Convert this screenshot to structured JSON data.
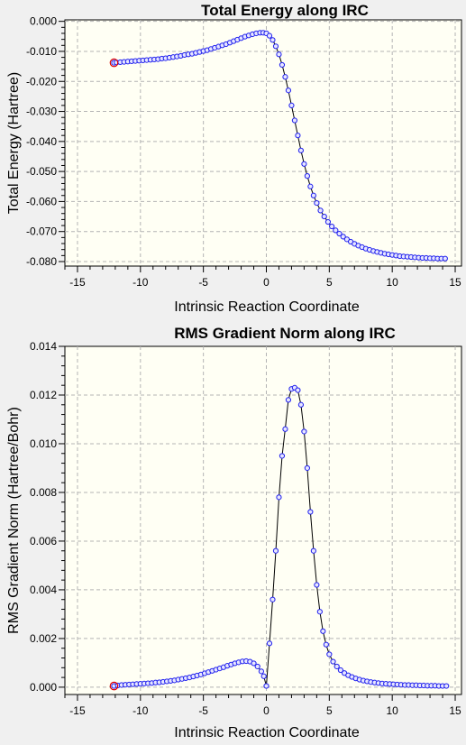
{
  "chart_data": [
    {
      "type": "scatter",
      "title": "Total Energy along IRC",
      "xlabel": "Intrinsic Reaction Coordinate",
      "ylabel": "Total Energy (Hartree)",
      "xlim": [
        -16,
        15.5
      ],
      "ylim": [
        -0.0815,
        0.0005
      ],
      "xticks": [
        -15,
        -10,
        -5,
        0,
        5,
        10,
        15
      ],
      "yticks": [
        0.0,
        -0.01,
        -0.02,
        -0.03,
        -0.04,
        -0.05,
        -0.06,
        -0.07,
        -0.08
      ],
      "xtick_labels": [
        "-15",
        "-10",
        "-5",
        "0",
        "5",
        "10",
        "15"
      ],
      "ytick_labels": [
        "0.000",
        "-0.010",
        "-0.020",
        "-0.030",
        "-0.040",
        "-0.050",
        "-0.060",
        "-0.070",
        "-0.080"
      ],
      "grid": true,
      "highlight_x": -12.1,
      "x": [
        -12.1,
        -11.9,
        -11.6,
        -11.3,
        -11.0,
        -10.7,
        -10.4,
        -10.1,
        -9.8,
        -9.5,
        -9.2,
        -8.9,
        -8.6,
        -8.3,
        -8.0,
        -7.7,
        -7.4,
        -7.1,
        -6.8,
        -6.5,
        -6.2,
        -5.9,
        -5.6,
        -5.3,
        -5.0,
        -4.7,
        -4.4,
        -4.1,
        -3.8,
        -3.5,
        -3.2,
        -2.9,
        -2.6,
        -2.3,
        -2.0,
        -1.7,
        -1.4,
        -1.1,
        -0.8,
        -0.5,
        -0.25,
        0.0,
        0.25,
        0.5,
        0.75,
        1.0,
        1.25,
        1.5,
        1.75,
        2.0,
        2.25,
        2.5,
        2.75,
        3.0,
        3.25,
        3.5,
        3.75,
        4.0,
        4.3,
        4.6,
        4.9,
        5.2,
        5.5,
        5.8,
        6.1,
        6.4,
        6.7,
        7.0,
        7.3,
        7.6,
        7.9,
        8.2,
        8.5,
        8.8,
        9.1,
        9.4,
        9.7,
        10.0,
        10.3,
        10.6,
        10.9,
        11.2,
        11.5,
        11.8,
        12.1,
        12.4,
        12.7,
        13.0,
        13.3,
        13.6,
        13.9,
        14.2
      ],
      "y": [
        -0.0138,
        -0.0137,
        -0.0136,
        -0.0135,
        -0.0134,
        -0.0133,
        -0.0132,
        -0.0131,
        -0.013,
        -0.0129,
        -0.0128,
        -0.0127,
        -0.0126,
        -0.0124,
        -0.0123,
        -0.0121,
        -0.0119,
        -0.0117,
        -0.0115,
        -0.0112,
        -0.011,
        -0.0108,
        -0.0105,
        -0.0102,
        -0.0099,
        -0.0096,
        -0.0092,
        -0.0088,
        -0.0084,
        -0.008,
        -0.0076,
        -0.0071,
        -0.0066,
        -0.0061,
        -0.0056,
        -0.0051,
        -0.0047,
        -0.0043,
        -0.004,
        -0.0038,
        -0.0038,
        -0.004,
        -0.0048,
        -0.0062,
        -0.0083,
        -0.011,
        -0.0145,
        -0.0185,
        -0.023,
        -0.028,
        -0.033,
        -0.038,
        -0.043,
        -0.0475,
        -0.0515,
        -0.055,
        -0.058,
        -0.0605,
        -0.063,
        -0.065,
        -0.0668,
        -0.0683,
        -0.0696,
        -0.0707,
        -0.0717,
        -0.0726,
        -0.0734,
        -0.0741,
        -0.0747,
        -0.0752,
        -0.0757,
        -0.0761,
        -0.0765,
        -0.0768,
        -0.0771,
        -0.0774,
        -0.0776,
        -0.0778,
        -0.078,
        -0.0782,
        -0.0783,
        -0.0784,
        -0.0785,
        -0.0786,
        -0.0787,
        -0.0788,
        -0.0788,
        -0.0789,
        -0.0789,
        -0.079,
        -0.079,
        -0.079
      ]
    },
    {
      "type": "line",
      "title": "RMS Gradient Norm along IRC",
      "xlabel": "Intrinsic Reaction Coordinate",
      "ylabel": "RMS Gradient Norm (Hartree/Bohr)",
      "xlim": [
        -16,
        15.5
      ],
      "ylim": [
        -0.0003,
        0.014
      ],
      "xticks": [
        -15,
        -10,
        -5,
        0,
        5,
        10,
        15
      ],
      "yticks": [
        0.0,
        0.002,
        0.004,
        0.006,
        0.008,
        0.01,
        0.012,
        0.014
      ],
      "xtick_labels": [
        "-15",
        "-10",
        "-5",
        "0",
        "5",
        "10",
        "15"
      ],
      "ytick_labels": [
        "0.000",
        "0.002",
        "0.004",
        "0.006",
        "0.008",
        "0.010",
        "0.012",
        "0.014"
      ],
      "grid": true,
      "highlight_x": -12.1,
      "x": [
        -12.1,
        -11.8,
        -11.5,
        -11.2,
        -10.9,
        -10.6,
        -10.3,
        -10.0,
        -9.7,
        -9.4,
        -9.1,
        -8.8,
        -8.5,
        -8.2,
        -7.9,
        -7.6,
        -7.3,
        -7.0,
        -6.7,
        -6.4,
        -6.1,
        -5.8,
        -5.5,
        -5.2,
        -4.9,
        -4.6,
        -4.3,
        -4.0,
        -3.7,
        -3.4,
        -3.1,
        -2.8,
        -2.5,
        -2.2,
        -1.9,
        -1.6,
        -1.3,
        -1.0,
        -0.7,
        -0.4,
        -0.2,
        0.0,
        0.25,
        0.5,
        0.75,
        1.0,
        1.25,
        1.5,
        1.75,
        2.0,
        2.25,
        2.5,
        2.75,
        3.0,
        3.25,
        3.5,
        3.75,
        4.0,
        4.25,
        4.5,
        4.75,
        5.0,
        5.3,
        5.6,
        5.9,
        6.2,
        6.5,
        6.8,
        7.1,
        7.4,
        7.7,
        8.0,
        8.3,
        8.6,
        8.9,
        9.2,
        9.5,
        9.8,
        10.1,
        10.4,
        10.7,
        11.0,
        11.3,
        11.6,
        11.9,
        12.2,
        12.5,
        12.8,
        13.1,
        13.4,
        13.7,
        14.0,
        14.3
      ],
      "y": [
        5e-05,
        7e-05,
        9e-05,
        0.0001,
        0.00011,
        0.00012,
        0.00013,
        0.00014,
        0.00015,
        0.00016,
        0.00017,
        0.00019,
        0.0002,
        0.00022,
        0.00024,
        0.00026,
        0.00028,
        0.00031,
        0.00034,
        0.00037,
        0.0004,
        0.00044,
        0.00048,
        0.00052,
        0.00057,
        0.00062,
        0.00067,
        0.00072,
        0.00077,
        0.00082,
        0.00088,
        0.00093,
        0.00098,
        0.00102,
        0.00106,
        0.00107,
        0.00105,
        0.00098,
        0.00085,
        0.00065,
        0.00045,
        5e-05,
        0.0018,
        0.0036,
        0.0056,
        0.0078,
        0.0095,
        0.0106,
        0.0118,
        0.01225,
        0.0123,
        0.0122,
        0.0116,
        0.0105,
        0.009,
        0.0072,
        0.0056,
        0.0042,
        0.0031,
        0.0023,
        0.00175,
        0.00135,
        0.00105,
        0.00085,
        0.0007,
        0.00058,
        0.00049,
        0.00042,
        0.00036,
        0.00031,
        0.00027,
        0.00024,
        0.00021,
        0.00019,
        0.00017,
        0.00015,
        0.00014,
        0.00013,
        0.00012,
        0.00011,
        0.0001,
        9e-05,
        9e-05,
        8e-05,
        8e-05,
        7e-05,
        7e-05,
        6e-05,
        6e-05,
        6e-05,
        5e-05,
        5e-05,
        5e-05
      ]
    }
  ]
}
